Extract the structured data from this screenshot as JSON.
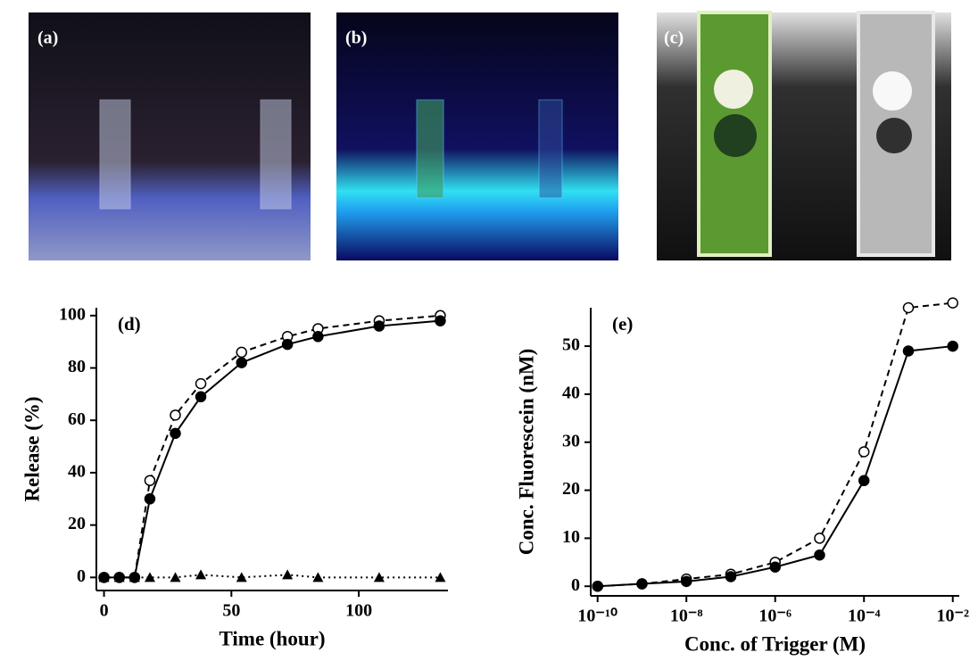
{
  "panels": [
    {
      "label": "(a)"
    },
    {
      "label": "(b)"
    },
    {
      "label": "(c)"
    }
  ],
  "chart_data": [
    {
      "type": "line",
      "annotation": "(d)",
      "xlabel": "Time (hour)",
      "ylabel": "Release (%)",
      "x": [
        0,
        6,
        12,
        18,
        28,
        38,
        54,
        72,
        84,
        108,
        132
      ],
      "series": [
        {
          "color": "#000000",
          "line_style": "dashed",
          "marker": "open-circle",
          "values": [
            0,
            0,
            0,
            37,
            62,
            74,
            86,
            92,
            95,
            98,
            100
          ]
        },
        {
          "color": "#000000",
          "line_style": "solid",
          "marker": "filled-circle",
          "values": [
            0,
            0,
            0,
            30,
            55,
            69,
            82,
            89,
            92,
            96,
            98
          ]
        },
        {
          "color": "#000000",
          "line_style": "dotted",
          "marker": "triangle",
          "values": [
            0,
            0,
            0,
            0,
            0,
            1,
            0,
            1,
            0,
            0,
            0
          ]
        }
      ],
      "xlim": [
        -3,
        135
      ],
      "xticks": [
        0,
        50,
        100
      ],
      "ylim": [
        -5,
        103
      ],
      "yticks": [
        0,
        20,
        40,
        60,
        80,
        100
      ]
    },
    {
      "type": "line",
      "annotation": "(e)",
      "xlabel": "Conc. of Trigger (M)",
      "ylabel": "Conc. Fluorescein (nM)",
      "xscale": "log",
      "x": [
        1e-10,
        1e-09,
        1e-08,
        1e-07,
        1e-06,
        1e-05,
        0.0001,
        0.001,
        0.01
      ],
      "series": [
        {
          "color": "#000000",
          "line_style": "dashed",
          "marker": "open-circle",
          "values": [
            0,
            0.5,
            1.5,
            2.5,
            5,
            10,
            28,
            58,
            59
          ]
        },
        {
          "color": "#000000",
          "line_style": "solid",
          "marker": "filled-circle",
          "values": [
            0,
            0.5,
            1,
            2,
            4,
            6.5,
            22,
            49,
            50
          ]
        }
      ],
      "xlim": [
        7e-11,
        0.014
      ],
      "xticks": [
        {
          "value": 1e-10,
          "label": "10⁻¹⁰"
        },
        {
          "value": 1e-08,
          "label": "10⁻⁸"
        },
        {
          "value": 1e-06,
          "label": "10⁻⁶"
        },
        {
          "value": 0.0001,
          "label": "10⁻⁴"
        },
        {
          "value": 0.01,
          "label": "10⁻²"
        }
      ],
      "ylim": [
        -2,
        58
      ],
      "yticks": [
        0,
        10,
        20,
        30,
        40,
        50
      ]
    }
  ]
}
